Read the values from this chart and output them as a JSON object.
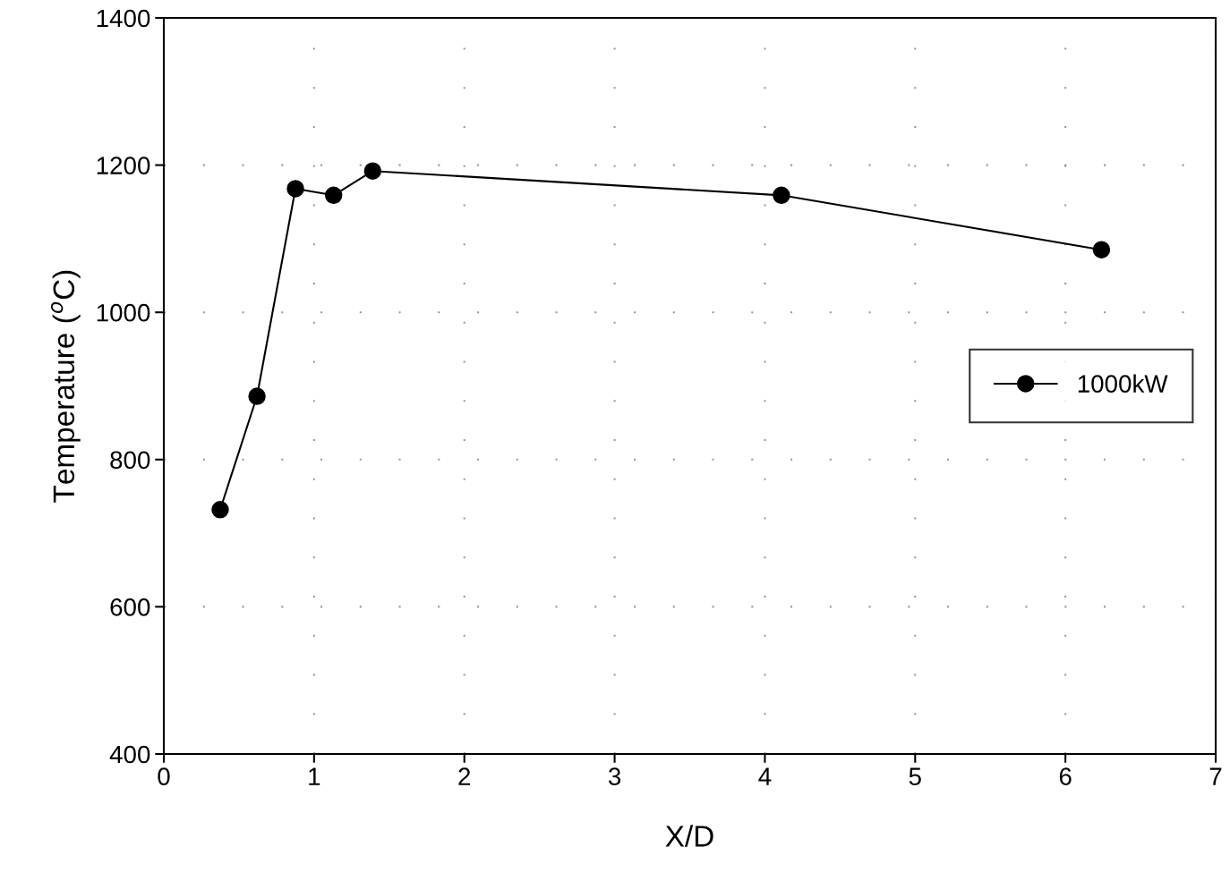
{
  "chart_data": {
    "type": "line",
    "xlabel": "X/D",
    "ylabel": "Temperature ($^{o}$C)",
    "x": [
      0.375,
      0.62,
      0.876,
      1.13,
      1.39,
      4.11,
      6.24
    ],
    "series": [
      {
        "name": "1000kW",
        "color": "#000000",
        "values": [
          732,
          886,
          1168,
          1159,
          1192,
          1159,
          1085
        ]
      }
    ],
    "xlim": [
      0,
      7
    ],
    "xticks": [
      0,
      1,
      2,
      3,
      4,
      5,
      6,
      7
    ],
    "ylim": [
      400,
      1400
    ],
    "yticks": [
      400,
      600,
      800,
      1000,
      1200,
      1400
    ],
    "grid": true,
    "legend": "center right",
    "marker": "circle",
    "line_style": "solid"
  }
}
